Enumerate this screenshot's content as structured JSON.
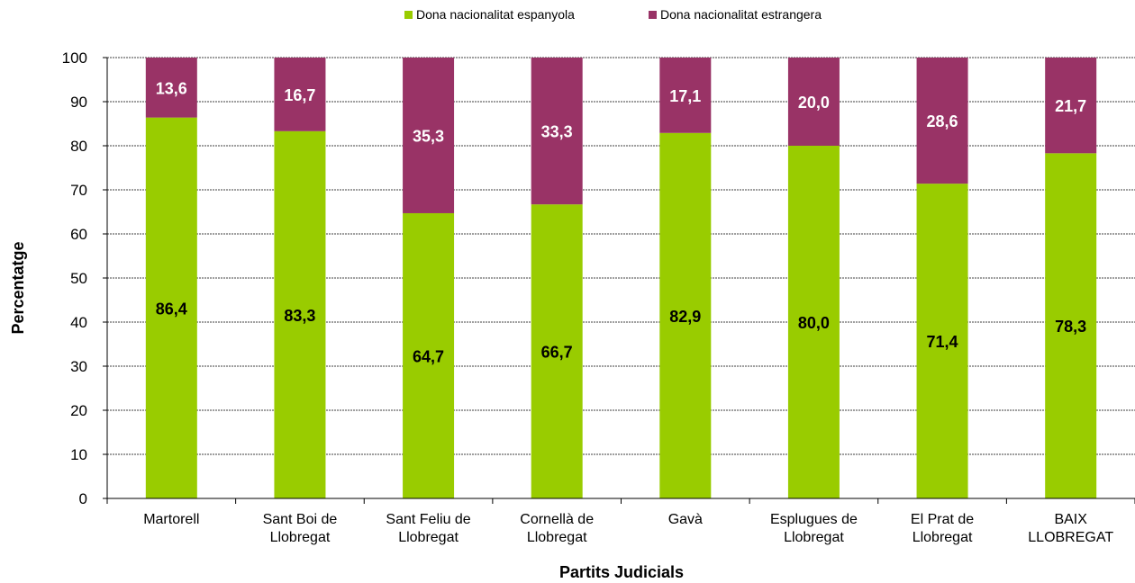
{
  "chart_data": {
    "type": "bar",
    "stacked": true,
    "categories": [
      [
        "Martorell"
      ],
      [
        "Sant Boi de",
        "Llobregat"
      ],
      [
        "Sant Feliu de",
        "Llobregat"
      ],
      [
        "Cornellà de",
        "Llobregat"
      ],
      [
        "Gavà"
      ],
      [
        "Esplugues de",
        "Llobregat"
      ],
      [
        "El Prat de",
        "Llobregat"
      ],
      [
        "BAIX",
        "LLOBREGAT"
      ]
    ],
    "series": [
      {
        "name": "Dona nacionalitat espanyola",
        "color": "#99cc00",
        "label_color": "#000000",
        "values": [
          86.4,
          83.3,
          64.7,
          66.7,
          82.9,
          80.0,
          71.4,
          78.3
        ],
        "labels": [
          "86,4",
          "83,3",
          "64,7",
          "66,7",
          "82,9",
          "80,0",
          "71,4",
          "78,3"
        ]
      },
      {
        "name": "Dona nacionalitat estrangera",
        "color": "#993366",
        "label_color": "#ffffff",
        "values": [
          13.6,
          16.7,
          35.3,
          33.3,
          17.1,
          20.0,
          28.6,
          21.7
        ],
        "labels": [
          "13,6",
          "16,7",
          "35,3",
          "33,3",
          "17,1",
          "20,0",
          "28,6",
          "21,7"
        ]
      }
    ],
    "xlabel": "Partits Judicials",
    "ylabel": "Percentatge",
    "ylim": [
      0,
      100
    ],
    "yticks": [
      0,
      10,
      20,
      30,
      40,
      50,
      60,
      70,
      80,
      90,
      100
    ],
    "grid": true,
    "legend_position": "top"
  }
}
